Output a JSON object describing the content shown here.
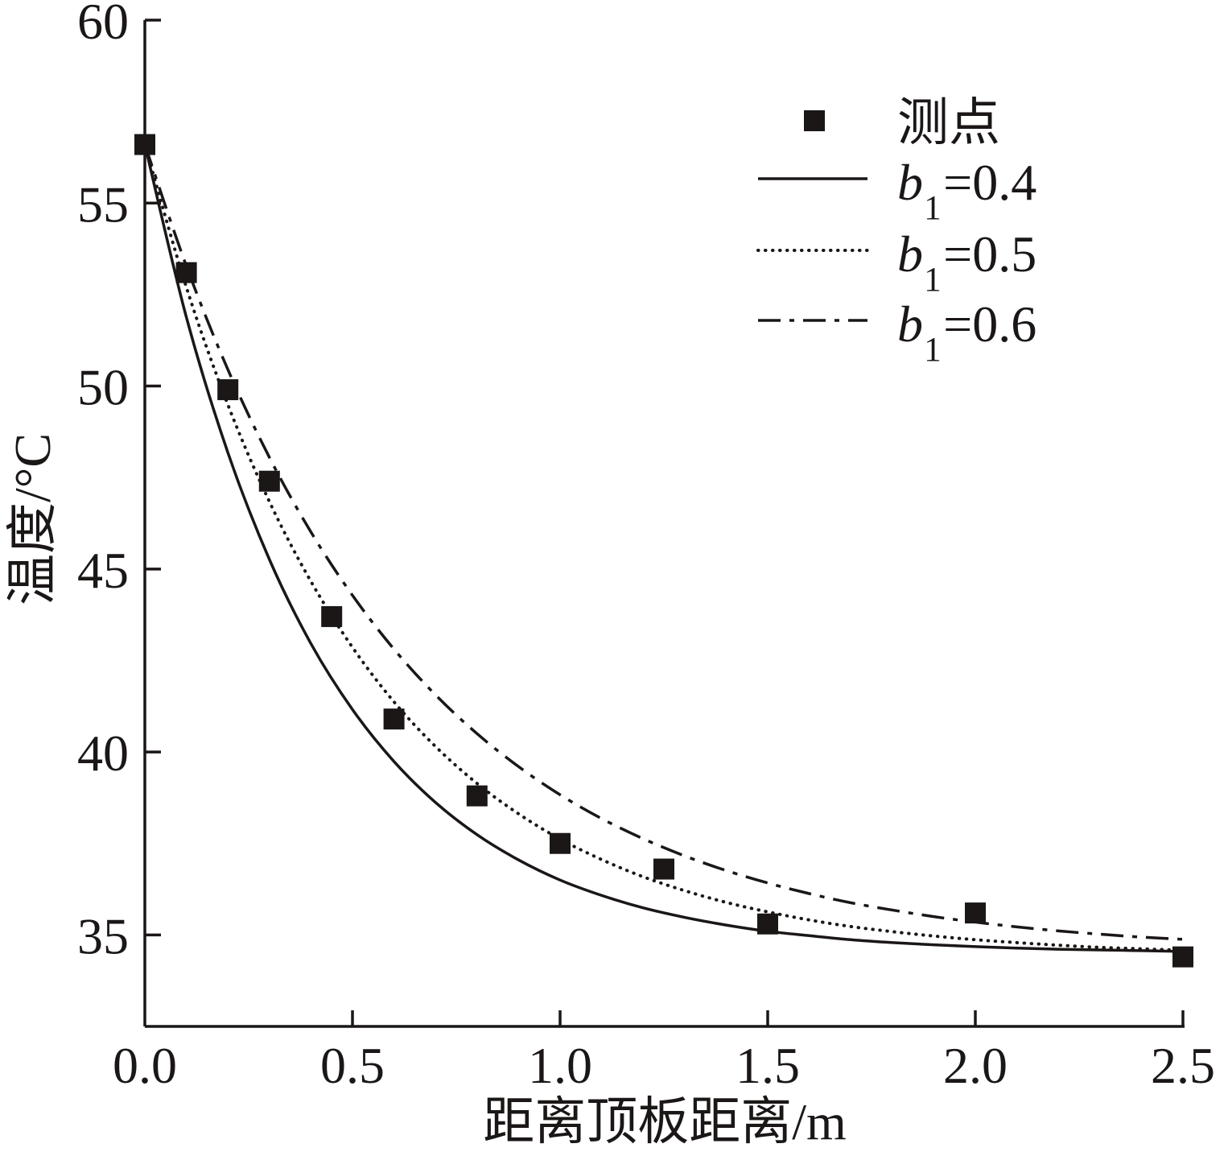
{
  "chart_data": {
    "type": "line",
    "xlabel": "距离顶板距离/m",
    "ylabel": "温度/°C",
    "xlim": [
      0,
      2.5
    ],
    "ylim": [
      32.5,
      60
    ],
    "xticks": [
      "0.0",
      "0.5",
      "1.0",
      "1.5",
      "2.0",
      "2.5"
    ],
    "yticks": [
      "35",
      "40",
      "45",
      "50",
      "55",
      "60"
    ],
    "grid": false,
    "legend": "top-right",
    "axis_color": "#1a1716",
    "series": [
      {
        "name": "测点",
        "kind": "scatter",
        "marker": "square",
        "color": "#1a1716",
        "x": [
          0,
          0.1,
          0.2,
          0.3,
          0.45,
          0.6,
          0.8,
          1.0,
          1.25,
          1.5,
          2.0,
          2.5
        ],
        "y": [
          56.6,
          53.1,
          49.9,
          47.4,
          43.7,
          40.9,
          38.8,
          37.5,
          36.8,
          35.3,
          35.6,
          34.4
        ]
      },
      {
        "name": "b₁=0.4",
        "kind": "line",
        "style": "solid",
        "color": "#1a1716",
        "x": [
          0,
          0.1,
          0.2,
          0.3,
          0.4,
          0.5,
          0.6,
          0.7,
          0.8,
          0.9,
          1.0,
          1.1,
          1.2,
          1.3,
          1.4,
          1.5,
          1.6,
          1.7,
          1.8,
          1.9,
          2.0,
          2.1,
          2.2,
          2.3,
          2.4,
          2.5
        ],
        "y": [
          56.6,
          51.88,
          48.18,
          45.26,
          42.96,
          41.16,
          39.74,
          38.62,
          37.74,
          37.05,
          36.5,
          36.08,
          35.74,
          35.48,
          35.27,
          35.1,
          34.98,
          34.87,
          34.79,
          34.73,
          34.68,
          34.64,
          34.61,
          34.59,
          34.57,
          34.55
        ]
      },
      {
        "name": "b₁=0.5",
        "kind": "line",
        "style": "dotted",
        "color": "#1a1716",
        "x": [
          0,
          0.1,
          0.2,
          0.3,
          0.4,
          0.5,
          0.6,
          0.7,
          0.8,
          0.9,
          1.0,
          1.1,
          1.2,
          1.3,
          1.4,
          1.5,
          1.6,
          1.7,
          1.8,
          1.9,
          2.0,
          2.1,
          2.2,
          2.3,
          2.4,
          2.5
        ],
        "y": [
          56.6,
          52.7,
          49.49,
          46.84,
          44.66,
          42.86,
          41.37,
          40.15,
          39.14,
          38.31,
          37.62,
          37.06,
          36.59,
          36.21,
          35.89,
          35.63,
          35.41,
          35.23,
          35.09,
          34.97,
          34.87,
          34.79,
          34.72,
          34.66,
          34.62,
          34.58
        ]
      },
      {
        "name": "b₁=0.6",
        "kind": "line",
        "style": "dash-dot",
        "color": "#1a1716",
        "x": [
          0,
          0.1,
          0.2,
          0.3,
          0.4,
          0.5,
          0.6,
          0.7,
          0.8,
          0.9,
          1.0,
          1.1,
          1.2,
          1.3,
          1.4,
          1.5,
          1.6,
          1.7,
          1.8,
          1.9,
          2.0,
          2.1,
          2.2,
          2.3,
          2.4,
          2.5
        ],
        "y": [
          56.6,
          53.28,
          50.45,
          48.05,
          46.01,
          44.28,
          42.81,
          41.56,
          40.5,
          39.6,
          38.83,
          38.18,
          37.63,
          37.16,
          36.76,
          36.42,
          36.13,
          35.88,
          35.68,
          35.5,
          35.35,
          35.22,
          35.11,
          35.02,
          34.94,
          34.88
        ]
      }
    ]
  }
}
